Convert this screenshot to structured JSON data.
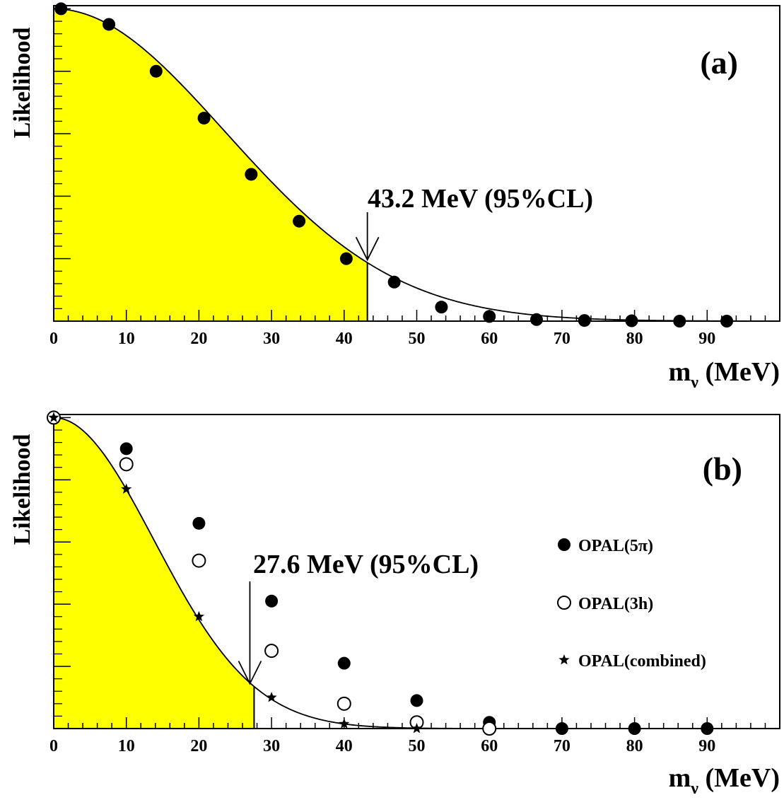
{
  "colors": {
    "fill": "#ffff00",
    "ink": "#000000",
    "background": "#ffffff"
  },
  "chart_data": [
    {
      "type": "scatter",
      "panel": "(a)",
      "ylabel": "Likelihood",
      "xlabel_main": "m",
      "xlabel_sub": "ν",
      "xlabel_unit": " (MeV)",
      "xlim": [
        0,
        100
      ],
      "ylim": [
        0,
        1.01
      ],
      "x_ticks": [
        0,
        10,
        20,
        30,
        40,
        50,
        60,
        70,
        80,
        90
      ],
      "x_tick_labels": [
        "0",
        "10",
        "20",
        "30",
        "40",
        "50",
        "60",
        "70",
        "80",
        "90"
      ],
      "y_tick_count": 5,
      "limit": {
        "x": 43.2,
        "label": "43.2 MeV (95%CL)"
      },
      "curve": {
        "type": "gaussian",
        "sigma": 23.6,
        "amplitude": 1.0
      },
      "shaded_region": [
        0,
        43.2
      ],
      "series": [
        {
          "marker": "filled-circle",
          "x": [
            1,
            7.6,
            14.1,
            20.7,
            27.2,
            33.8,
            40.3,
            46.9,
            53.4,
            60,
            66.5,
            73.1,
            79.6,
            86.2,
            92.7
          ],
          "y": [
            1.0,
            0.95,
            0.8,
            0.65,
            0.47,
            0.32,
            0.2,
            0.125,
            0.045,
            0.015,
            0.005,
            0.002,
            0.001,
            0.0,
            0.0
          ]
        }
      ]
    },
    {
      "type": "scatter",
      "panel": "(b)",
      "ylabel": "Likelihood",
      "xlabel_main": "m",
      "xlabel_sub": "ν",
      "xlabel_unit": " (MeV)",
      "xlim": [
        0,
        100
      ],
      "ylim": [
        0,
        1.01
      ],
      "x_ticks": [
        0,
        10,
        20,
        30,
        40,
        50,
        60,
        70,
        80,
        90
      ],
      "x_tick_labels": [
        "0",
        "10",
        "20",
        "30",
        "40",
        "50",
        "60",
        "70",
        "80",
        "90"
      ],
      "y_tick_count": 5,
      "limit": {
        "x": 27.6,
        "label": "27.6 MeV (95%CL)"
      },
      "curve": {
        "type": "gaussian",
        "sigma": 13.8,
        "amplitude": 1.0
      },
      "shaded_region": [
        0,
        27.6
      ],
      "series": [
        {
          "name": "OPAL(5π)",
          "marker": "filled-circle",
          "x": [
            0,
            10,
            20,
            30,
            40,
            50,
            60,
            70,
            80,
            90
          ],
          "y": [
            1.0,
            0.9,
            0.66,
            0.41,
            0.21,
            0.09,
            0.02,
            0.0,
            0.0,
            0.0
          ]
        },
        {
          "name": "OPAL(3h)",
          "marker": "open-circle",
          "x": [
            0,
            10,
            20,
            30,
            40,
            50,
            60
          ],
          "y": [
            1.0,
            0.85,
            0.54,
            0.25,
            0.08,
            0.02,
            0.0
          ]
        },
        {
          "name": "OPAL(combined)",
          "marker": "star",
          "x": [
            0,
            10,
            20,
            30,
            40,
            50
          ],
          "y": [
            1.0,
            0.77,
            0.36,
            0.1,
            0.015,
            0.0
          ]
        }
      ]
    }
  ]
}
